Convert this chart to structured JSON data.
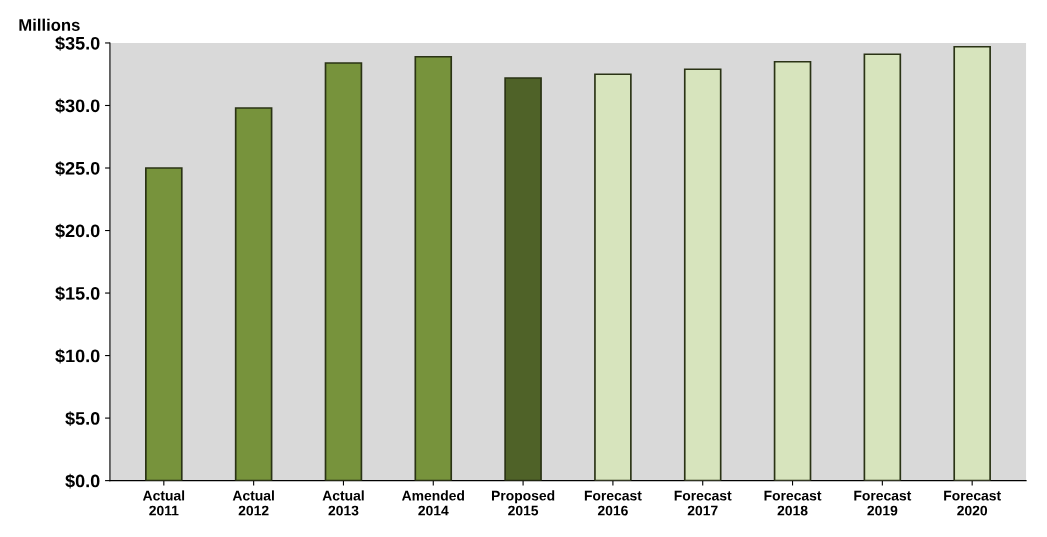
{
  "chart_data": {
    "type": "bar",
    "ylabel": "Millions",
    "categories": [
      "Actual\n2011",
      "Actual\n2012",
      "Actual\n2013",
      "Amended\n2014",
      "Proposed\n2015",
      "Forecast\n2016",
      "Forecast\n2017",
      "Forecast\n2018",
      "Forecast\n2019",
      "Forecast\n2020"
    ],
    "values": [
      25.0,
      29.8,
      33.4,
      33.9,
      32.2,
      32.5,
      32.9,
      33.5,
      34.1,
      34.7
    ],
    "colors": [
      "#77933c",
      "#77933c",
      "#77933c",
      "#77933c",
      "#4f6228",
      "#d7e4bd",
      "#d7e4bd",
      "#d7e4bd",
      "#d7e4bd",
      "#d7e4bd"
    ],
    "ylim": [
      0,
      35
    ],
    "yticks": [
      {
        "value": 0,
        "label": "$0.0"
      },
      {
        "value": 5,
        "label": "$5.0"
      },
      {
        "value": 10,
        "label": "$10.0"
      },
      {
        "value": 15,
        "label": "$15.0"
      },
      {
        "value": 20,
        "label": "$20.0"
      },
      {
        "value": 25,
        "label": "$25.0"
      },
      {
        "value": 30,
        "label": "$30.0"
      },
      {
        "value": 35,
        "label": "$35.0"
      }
    ],
    "grid": false,
    "legend": false
  }
}
